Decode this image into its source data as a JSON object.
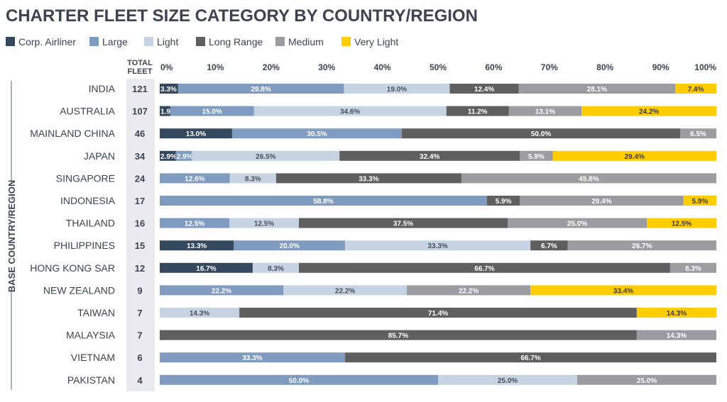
{
  "chart_data": {
    "type": "bar",
    "orientation": "horizontal",
    "stacked": true,
    "normalized": true,
    "title": "CHARTER FLEET SIZE CATEGORY BY COUNTRY/REGION",
    "ylabel": "BASE COUNTRY/REGION",
    "total_header": [
      "TOTAL",
      "FLEET"
    ],
    "xlim": [
      0,
      100
    ],
    "xticks": [
      "0%",
      "10%",
      "20%",
      "30%",
      "40%",
      "50%",
      "60%",
      "70%",
      "80%",
      "90%",
      "100%"
    ],
    "legend_position": "top-left",
    "categories": [
      "INDIA",
      "AUSTRALIA",
      "MAINLAND CHINA",
      "JAPAN",
      "SINGAPORE",
      "INDONESIA",
      "THAILAND",
      "PHILIPPINES",
      "HONG KONG SAR",
      "NEW ZEALAND",
      "TAIWAN",
      "MALAYSIA",
      "VIETNAM",
      "PAKISTAN"
    ],
    "totals": [
      121,
      107,
      46,
      34,
      24,
      17,
      16,
      15,
      12,
      9,
      7,
      7,
      6,
      4
    ],
    "series": [
      {
        "name": "Corp. Airliner",
        "color": "#34495e",
        "label_color": "#ffffff",
        "values": [
          3.3,
          1.9,
          13.0,
          2.9,
          0,
          0,
          0,
          13.3,
          16.7,
          0,
          0,
          0,
          0,
          0
        ]
      },
      {
        "name": "Large",
        "color": "#7f9cc0",
        "label_color": "#ffffff",
        "values": [
          29.8,
          15.0,
          30.5,
          2.9,
          12.6,
          58.8,
          12.5,
          20.0,
          0,
          22.2,
          0,
          0,
          33.3,
          50.0
        ]
      },
      {
        "name": "Light",
        "color": "#c5d3e3",
        "label_color": "#4a4f57",
        "values": [
          19.0,
          34.6,
          0,
          26.5,
          8.3,
          0,
          12.5,
          33.3,
          8.3,
          22.2,
          14.3,
          0,
          0,
          25.0
        ]
      },
      {
        "name": "Long Range",
        "color": "#5f5f5f",
        "label_color": "#ffffff",
        "values": [
          12.4,
          11.2,
          50.0,
          32.4,
          33.3,
          5.9,
          37.5,
          6.7,
          66.7,
          0,
          71.4,
          85.7,
          66.7,
          0
        ]
      },
      {
        "name": "Medium",
        "color": "#9b9ca0",
        "label_color": "#ffffff",
        "values": [
          28.1,
          13.1,
          6.5,
          5.9,
          45.8,
          29.4,
          25.0,
          26.7,
          8.3,
          22.2,
          0,
          14.3,
          0,
          25.0
        ]
      },
      {
        "name": "Very Light",
        "color": "#ffcc00",
        "label_color": "#3a3a3a",
        "values": [
          7.4,
          24.2,
          0,
          29.4,
          0,
          5.9,
          12.5,
          0,
          0,
          33.4,
          14.3,
          0,
          0,
          0
        ]
      }
    ],
    "data_labels": [
      [
        "3.3%",
        "29.8%",
        "19.0%",
        "12.4%",
        "28.1%",
        "7.4%"
      ],
      [
        "1.9%",
        "15.0%",
        "34.6%",
        "11.2%",
        "13.1%",
        "24.2%"
      ],
      [
        "13.0%",
        "30.5%",
        "",
        "50.0%",
        "6.5%",
        ""
      ],
      [
        "2.9%",
        "2.9%",
        "26.5%",
        "32.4%",
        "5.9%",
        "29.4%"
      ],
      [
        "",
        "12.6%",
        "8.3%",
        "33.3%",
        "45.8%",
        ""
      ],
      [
        "",
        "58.8%",
        "",
        "5.9%",
        "29.4%",
        "5.9%"
      ],
      [
        "",
        "12.5%",
        "12.5%",
        "37.5%",
        "25.0%",
        "12.5%"
      ],
      [
        "13.3%",
        "20.0%",
        "33.3%",
        "6.7%",
        "26.7%",
        ""
      ],
      [
        "16.7%",
        "",
        "8.3%",
        "66.7%",
        "8.3%",
        ""
      ],
      [
        "",
        "22.2%",
        "22.2%",
        "",
        "22.2%",
        "33.4%"
      ],
      [
        "",
        "",
        "14.3%",
        "71.4%",
        "",
        "14.3%"
      ],
      [
        "",
        "",
        "",
        "85.7%",
        "14.3%",
        ""
      ],
      [
        "",
        "33.3%",
        "",
        "66.7%",
        "",
        ""
      ],
      [
        "",
        "50.0%",
        "25.0%",
        "",
        "25.0%",
        ""
      ]
    ]
  }
}
